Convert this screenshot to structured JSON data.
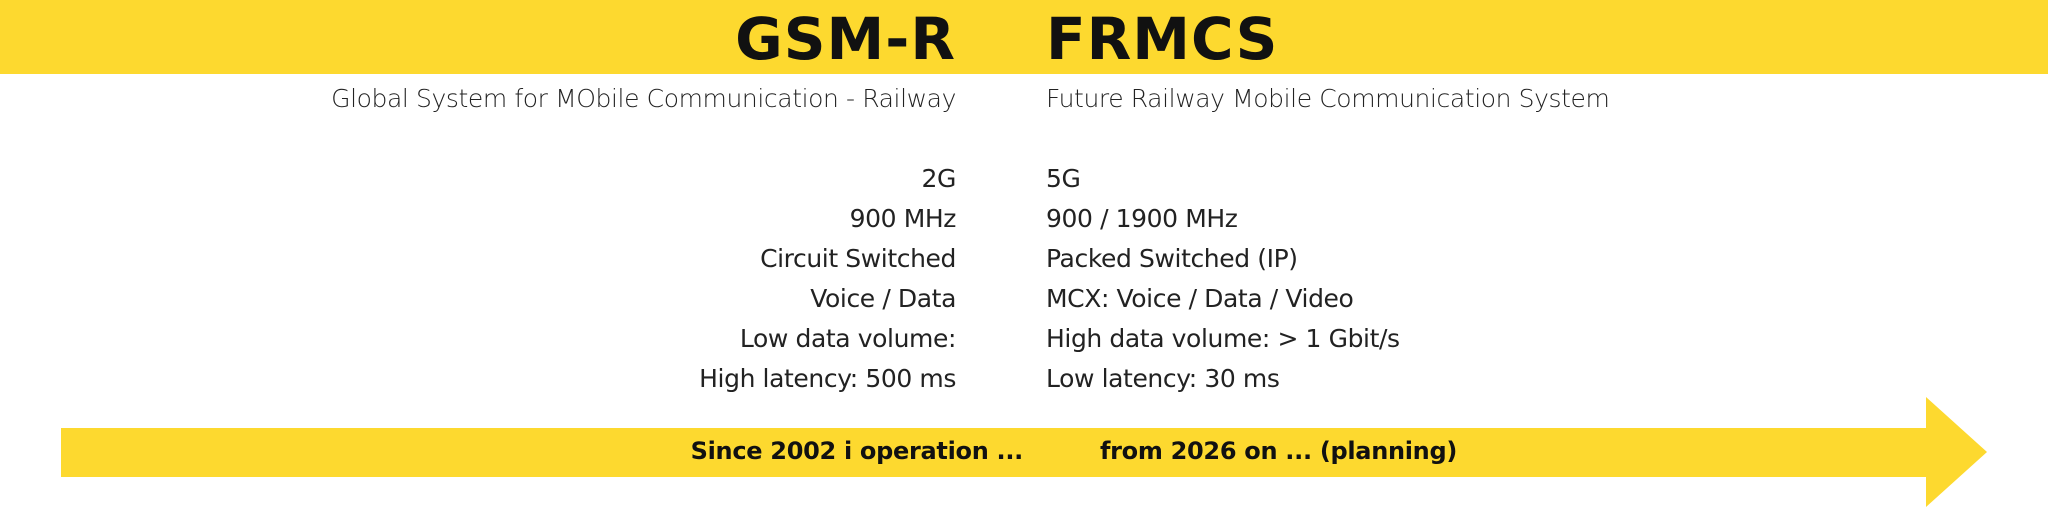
{
  "colors": {
    "accent_yellow": "#fdd92f",
    "text": "#222222"
  },
  "header": {
    "left_title": "GSM-R",
    "right_title": "FRMCS"
  },
  "subtitles": {
    "left": "Global System for MObile Communication - Railway",
    "right": "Future Railway Mobile Communication System"
  },
  "comparison": {
    "left": [
      "2G",
      "900 MHz",
      "Circuit Switched",
      "Voice / Data",
      "Low data volume:",
      "High latency: 500 ms"
    ],
    "right": [
      "5G",
      "900 / 1900 MHz",
      "Packed Switched (IP)",
      "MCX: Voice / Data / Video",
      "High data volume: > 1 Gbit/s",
      "Low latency: 30 ms"
    ]
  },
  "timeline": {
    "left_label": "Since 2002 i operation ...",
    "right_label": "from 2026 on ... (planning)"
  }
}
